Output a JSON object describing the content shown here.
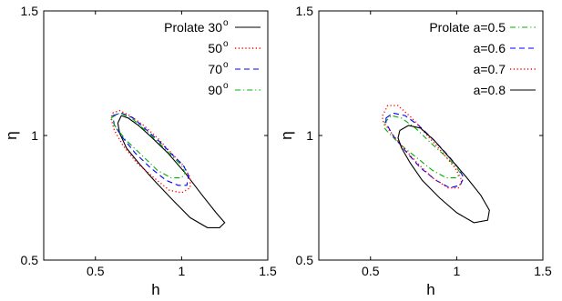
{
  "chart_data": [
    {
      "type": "line",
      "title": "",
      "xlabel": "h",
      "ylabel": "η",
      "xlim": [
        0.2,
        1.5
      ],
      "ylim": [
        0.5,
        1.5
      ],
      "xticks": [
        "0.5",
        "1",
        "1.5"
      ],
      "yticks": [
        "0.5",
        "1",
        "1.5"
      ],
      "grid": false,
      "legend_position": "top-right",
      "series": [
        {
          "name": "Prolate 30",
          "name_superscript": "o",
          "color": "#000000",
          "style": "solid",
          "points": [
            [
              0.65,
              1.08
            ],
            [
              0.69,
              1.07
            ],
            [
              0.75,
              1.04
            ],
            [
              0.83,
              0.99
            ],
            [
              0.92,
              0.93
            ],
            [
              1.02,
              0.85
            ],
            [
              1.12,
              0.76
            ],
            [
              1.2,
              0.69
            ],
            [
              1.25,
              0.65
            ],
            [
              1.22,
              0.63
            ],
            [
              1.15,
              0.63
            ],
            [
              1.05,
              0.67
            ],
            [
              0.95,
              0.74
            ],
            [
              0.84,
              0.82
            ],
            [
              0.75,
              0.89
            ],
            [
              0.68,
              0.95
            ],
            [
              0.64,
              1.01
            ],
            [
              0.63,
              1.05
            ],
            [
              0.65,
              1.08
            ]
          ]
        },
        {
          "name": "50",
          "name_superscript": "o",
          "color": "#ff0000",
          "style": "dotted",
          "points": [
            [
              0.6,
              1.09
            ],
            [
              0.64,
              1.1
            ],
            [
              0.7,
              1.08
            ],
            [
              0.78,
              1.04
            ],
            [
              0.86,
              0.99
            ],
            [
              0.94,
              0.93
            ],
            [
              1.01,
              0.88
            ],
            [
              1.05,
              0.83
            ],
            [
              1.05,
              0.79
            ],
            [
              1.0,
              0.77
            ],
            [
              0.93,
              0.78
            ],
            [
              0.84,
              0.83
            ],
            [
              0.74,
              0.89
            ],
            [
              0.66,
              0.96
            ],
            [
              0.61,
              1.02
            ],
            [
              0.59,
              1.07
            ],
            [
              0.6,
              1.09
            ]
          ]
        },
        {
          "name": "70",
          "name_superscript": "o",
          "color": "#0000ff",
          "style": "dashed",
          "points": [
            [
              0.6,
              1.08
            ],
            [
              0.65,
              1.09
            ],
            [
              0.72,
              1.07
            ],
            [
              0.8,
              1.02
            ],
            [
              0.88,
              0.97
            ],
            [
              0.95,
              0.92
            ],
            [
              1.01,
              0.88
            ],
            [
              1.04,
              0.84
            ],
            [
              1.03,
              0.8
            ],
            [
              0.98,
              0.8
            ],
            [
              0.91,
              0.82
            ],
            [
              0.82,
              0.87
            ],
            [
              0.73,
              0.93
            ],
            [
              0.66,
              0.99
            ],
            [
              0.61,
              1.04
            ],
            [
              0.6,
              1.08
            ]
          ]
        },
        {
          "name": "90",
          "name_superscript": "o",
          "color": "#00b000",
          "style": "dashdot",
          "points": [
            [
              0.59,
              1.07
            ],
            [
              0.64,
              1.09
            ],
            [
              0.71,
              1.07
            ],
            [
              0.79,
              1.02
            ],
            [
              0.87,
              0.97
            ],
            [
              0.94,
              0.92
            ],
            [
              1.0,
              0.88
            ],
            [
              1.02,
              0.85
            ],
            [
              1.0,
              0.83
            ],
            [
              0.94,
              0.83
            ],
            [
              0.86,
              0.86
            ],
            [
              0.77,
              0.92
            ],
            [
              0.68,
              0.98
            ],
            [
              0.62,
              1.03
            ],
            [
              0.59,
              1.07
            ]
          ]
        }
      ]
    },
    {
      "type": "line",
      "title": "",
      "xlabel": "h",
      "ylabel": "η",
      "xlim": [
        0.2,
        1.5
      ],
      "ylim": [
        0.5,
        1.5
      ],
      "xticks": [
        "0.5",
        "1",
        "1.5"
      ],
      "yticks": [
        "0.5",
        "1",
        "1.5"
      ],
      "grid": false,
      "legend_position": "top-right",
      "series": [
        {
          "name": "Prolate a=0.5",
          "name_superscript": "",
          "color": "#00b000",
          "style": "dashdot",
          "points": [
            [
              0.58,
              1.05
            ],
            [
              0.62,
              1.08
            ],
            [
              0.68,
              1.07
            ],
            [
              0.76,
              1.03
            ],
            [
              0.85,
              0.97
            ],
            [
              0.93,
              0.92
            ],
            [
              0.99,
              0.88
            ],
            [
              1.02,
              0.85
            ],
            [
              1.0,
              0.83
            ],
            [
              0.94,
              0.83
            ],
            [
              0.86,
              0.86
            ],
            [
              0.77,
              0.91
            ],
            [
              0.68,
              0.96
            ],
            [
              0.62,
              1.0
            ],
            [
              0.58,
              1.03
            ],
            [
              0.58,
              1.05
            ]
          ]
        },
        {
          "name": "a=0.6",
          "name_superscript": "",
          "color": "#0000ff",
          "style": "dashed",
          "points": [
            [
              0.59,
              1.07
            ],
            [
              0.63,
              1.09
            ],
            [
              0.7,
              1.08
            ],
            [
              0.78,
              1.04
            ],
            [
              0.87,
              0.98
            ],
            [
              0.95,
              0.92
            ],
            [
              1.01,
              0.87
            ],
            [
              1.04,
              0.83
            ],
            [
              1.02,
              0.8
            ],
            [
              0.96,
              0.79
            ],
            [
              0.88,
              0.82
            ],
            [
              0.79,
              0.87
            ],
            [
              0.7,
              0.94
            ],
            [
              0.63,
              1.0
            ],
            [
              0.59,
              1.05
            ],
            [
              0.59,
              1.07
            ]
          ]
        },
        {
          "name": "a=0.7",
          "name_superscript": "",
          "color": "#ff0000",
          "style": "dotted",
          "points": [
            [
              0.57,
              1.08
            ],
            [
              0.6,
              1.12
            ],
            [
              0.66,
              1.12
            ],
            [
              0.74,
              1.07
            ],
            [
              0.83,
              1.0
            ],
            [
              0.92,
              0.93
            ],
            [
              0.99,
              0.87
            ],
            [
              1.03,
              0.82
            ],
            [
              1.01,
              0.79
            ],
            [
              0.95,
              0.79
            ],
            [
              0.86,
              0.83
            ],
            [
              0.77,
              0.89
            ],
            [
              0.68,
              0.96
            ],
            [
              0.61,
              1.02
            ],
            [
              0.57,
              1.06
            ],
            [
              0.57,
              1.08
            ]
          ]
        },
        {
          "name": "a=0.8",
          "name_superscript": "",
          "color": "#000000",
          "style": "solid",
          "points": [
            [
              0.67,
              1.02
            ],
            [
              0.72,
              1.04
            ],
            [
              0.79,
              1.03
            ],
            [
              0.87,
              0.98
            ],
            [
              0.96,
              0.91
            ],
            [
              1.06,
              0.83
            ],
            [
              1.14,
              0.76
            ],
            [
              1.19,
              0.7
            ],
            [
              1.18,
              0.66
            ],
            [
              1.1,
              0.65
            ],
            [
              1.0,
              0.69
            ],
            [
              0.9,
              0.75
            ],
            [
              0.8,
              0.82
            ],
            [
              0.73,
              0.89
            ],
            [
              0.68,
              0.95
            ],
            [
              0.66,
              0.99
            ],
            [
              0.67,
              1.02
            ]
          ]
        }
      ]
    }
  ]
}
